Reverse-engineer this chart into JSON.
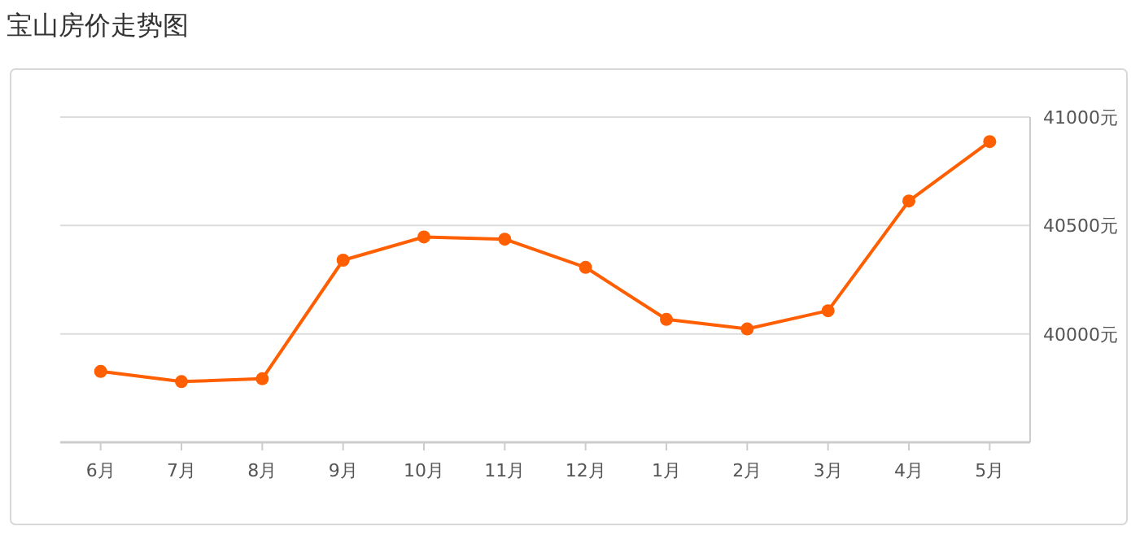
{
  "chart_data": {
    "type": "line",
    "title": "宝山房价走势图",
    "categories": [
      "6月",
      "7月",
      "8月",
      "9月",
      "10月",
      "11月",
      "12月",
      "1月",
      "2月",
      "3月",
      "4月",
      "5月"
    ],
    "series": [
      {
        "color": "#ff5f00",
        "values": [
          39827,
          39780,
          39793,
          40340,
          40447,
          40437,
          40307,
          40067,
          40023,
          40107,
          40613,
          40887
        ]
      }
    ],
    "ylim": [
      39500,
      41000
    ],
    "yticks": [
      {
        "value": 40000,
        "label": "40000元"
      },
      {
        "value": 40500,
        "label": "40500元"
      },
      {
        "value": 41000,
        "label": "41000元"
      }
    ],
    "grid": "y",
    "marker": "circle",
    "line_style": "solid"
  }
}
